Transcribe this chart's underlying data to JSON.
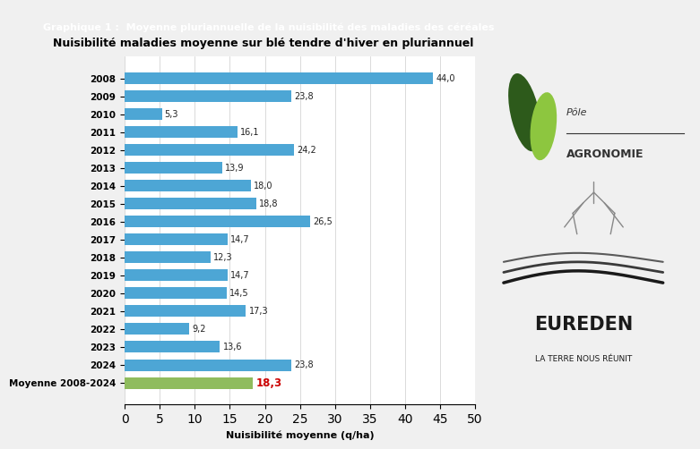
{
  "header": "Graphique 1 :  Moyenne pluriannuelle de la nuisibilité des maladies des céréales",
  "title": "Nuisibilité maladies moyenne sur blé tendre d'hiver en pluriannuel",
  "xlabel": "Nuisibilité moyenne (q/ha)",
  "categories": [
    "2008",
    "2009",
    "2010",
    "2011",
    "2012",
    "2013",
    "2014",
    "2015",
    "2016",
    "2017",
    "2018",
    "2019",
    "2020",
    "2021",
    "2022",
    "2023",
    "2024",
    "Moyenne 2008-2024"
  ],
  "values": [
    44.0,
    23.8,
    5.3,
    16.1,
    24.2,
    13.9,
    18.0,
    18.8,
    26.5,
    14.7,
    12.3,
    14.7,
    14.5,
    17.3,
    9.2,
    13.6,
    23.8,
    18.3
  ],
  "bar_colors": [
    "#4da6d5",
    "#4da6d5",
    "#4da6d5",
    "#4da6d5",
    "#4da6d5",
    "#4da6d5",
    "#4da6d5",
    "#4da6d5",
    "#4da6d5",
    "#4da6d5",
    "#4da6d5",
    "#4da6d5",
    "#4da6d5",
    "#4da6d5",
    "#4da6d5",
    "#4da6d5",
    "#4da6d5",
    "#8fbc5e"
  ],
  "value_colors": [
    "#222222",
    "#222222",
    "#222222",
    "#222222",
    "#222222",
    "#222222",
    "#222222",
    "#222222",
    "#222222",
    "#222222",
    "#222222",
    "#222222",
    "#222222",
    "#222222",
    "#222222",
    "#222222",
    "#222222",
    "#cc0000"
  ],
  "value_labels": [
    "44,0",
    "23,8",
    "5,3",
    "16,1",
    "24,2",
    "13,9",
    "18,0",
    "18,8",
    "26,5",
    "14,7",
    "12,3",
    "14,7",
    "14,5",
    "17,3",
    "9,2",
    "13,6",
    "23,8",
    "18,3"
  ],
  "header_bg": "#1a1a1a",
  "header_fg": "#ffffff",
  "background_color": "#f0f0f0",
  "plot_bg": "#ffffff",
  "xlim": [
    0,
    50
  ],
  "xticks": [
    0,
    5,
    10,
    15,
    20,
    25,
    30,
    35,
    40,
    45,
    50
  ],
  "eureden_text1": "EUREDEN",
  "eureden_text2": "LA TERRE NOUS RÉUNIT",
  "pole_text1": "Pôle",
  "pole_text2": "AGRONOMIE"
}
